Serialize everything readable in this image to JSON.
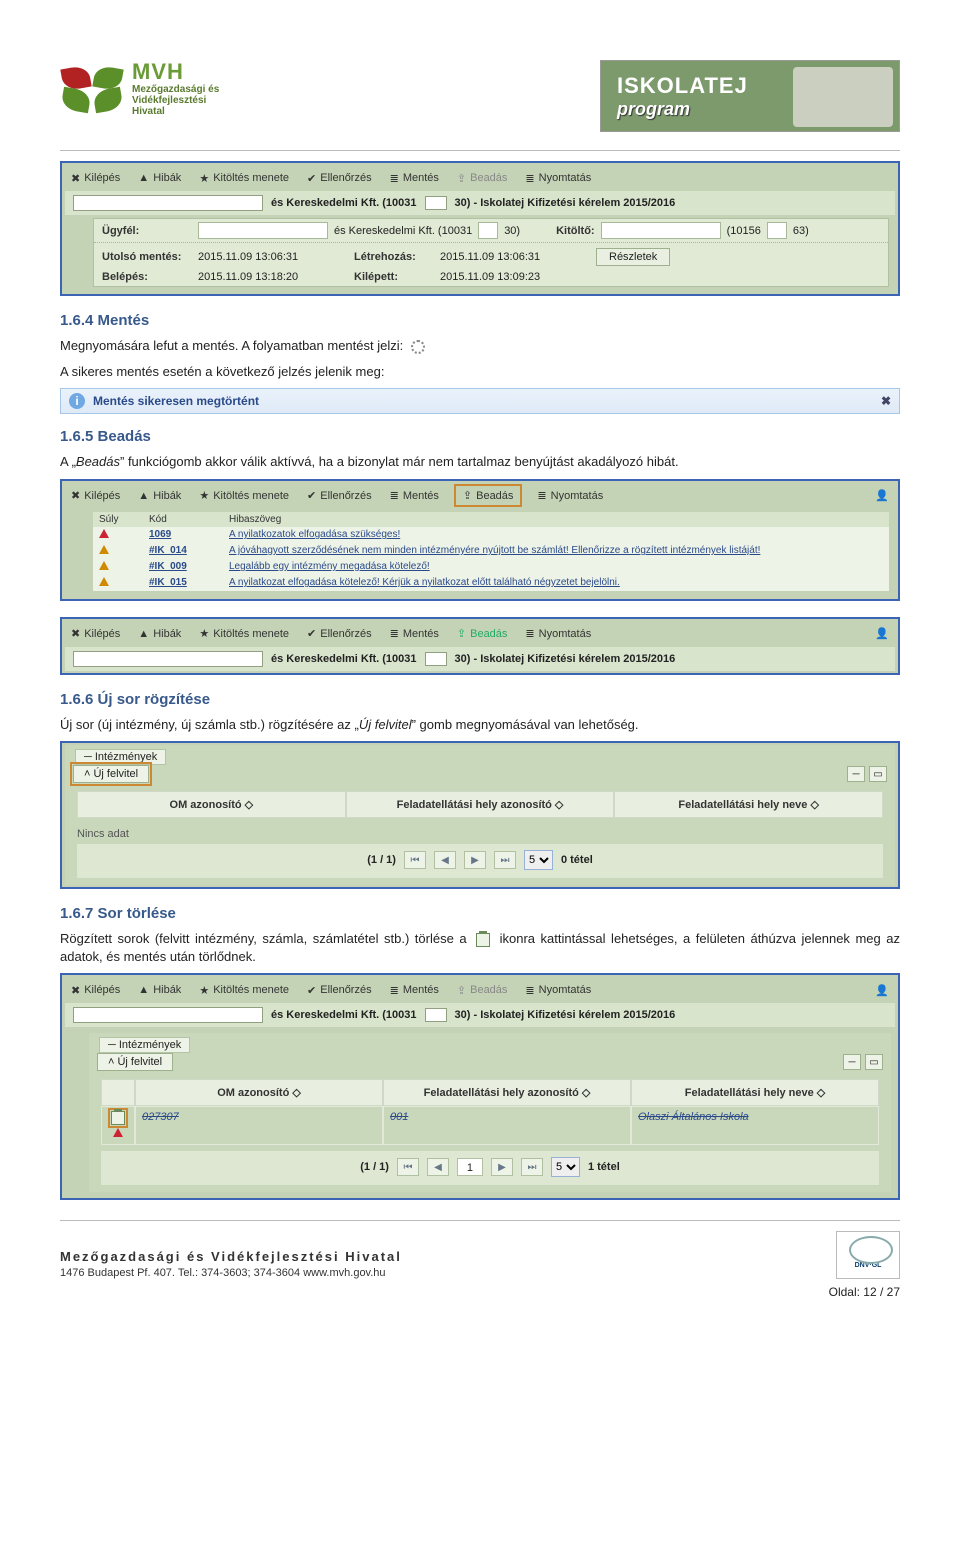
{
  "header": {
    "mvh_title": "MVH",
    "mvh_sub1": "Mezőgazdasági és",
    "mvh_sub2": "Vidékfejlesztési",
    "mvh_sub3": "Hivatal",
    "banner_line1": "ISKOLATEJ",
    "banner_line2": "program"
  },
  "menu": {
    "kilepes": "Kilépés",
    "hibak": "Hibák",
    "kitoltesmenete": "Kitöltés menete",
    "ellenorzes": "Ellenőrzés",
    "mentes": "Mentés",
    "beadas": "Beadás",
    "nyomtatas": "Nyomtatás"
  },
  "titleStrip": {
    "mid": "és Kereskedelmi Kft. (10031",
    "mid2": "30) - Iskolatej Kifizetési kérelem 2015/2016"
  },
  "info": {
    "ugyfel_label": "Ügyfél:",
    "ugyfel_mid": "és Kereskedelmi Kft. (10031",
    "ugyfel_mid2": "30)",
    "kitolto_label": "Kitöltő:",
    "kitolto_mid": "(10156",
    "kitolto_mid2": "63)",
    "utolso_label": "Utolsó mentés:",
    "utolso_val": "2015.11.09 13:06:31",
    "letre_label": "Létrehozás:",
    "letre_val": "2015.11.09 13:06:31",
    "belepes_label": "Belépés:",
    "belepes_val": "2015.11.09 13:18:20",
    "kilepett_label": "Kilépett:",
    "kilepett_val": "2015.11.09 13:09:23",
    "reszletek": "Részletek"
  },
  "sections": {
    "s164_title": "1.6.4  Mentés",
    "s164_p1": "Megnyomására lefut a mentés. A folyamatban mentést jelzi:",
    "s164_p2": "A sikeres mentés esetén a következő jelzés jelenik meg:",
    "save_msg": "Mentés sikeresen megtörtént",
    "s165_title": "1.6.5  Beadás",
    "s165_p_a": "A „",
    "s165_p_b": "Beadás",
    "s165_p_c": "” funkciógomb akkor válik aktívvá, ha a bizonylat már nem tartalmaz benyújtást akadályozó hibát.",
    "s166_title": "1.6.6  Új sor rögzítése",
    "s166_p_a": "Új sor (új intézmény, új számla stb.) rögzítésére az „",
    "s166_p_b": "Új felvitel",
    "s166_p_c": "” gomb megnyomásával van lehetőség.",
    "s167_title": "1.6.7  Sor törlése",
    "s167_p1": "Rögzített sorok (felvitt intézmény, számla, számlatétel stb.) törlése a",
    "s167_p2": "ikonra kattintással lehetséges, a felületen áthúzva jelennek meg az adatok, és mentés után törlődnek."
  },
  "errorTable": {
    "head_suly": "Súly",
    "head_kod": "Kód",
    "head_hiba": "Hibaszöveg",
    "rows": [
      {
        "sev": "red",
        "kod": "1069",
        "txt": "A nyilatkozatok elfogadása szükséges!"
      },
      {
        "sev": "y",
        "kod": "#IK_014",
        "txt": "A jóváhagyott szerződésének nem minden intézményére nyújtott be számlát! Ellenőrizze a rögzített intézmények listáját!"
      },
      {
        "sev": "y",
        "kod": "#IK_009",
        "txt": "Legalább egy intézmény megadása kötelező!"
      },
      {
        "sev": "y",
        "kod": "#IK_015",
        "txt": "A nyilatkozat elfogadása kötelező! Kérjük a nyilatkozat előtt található négyzetet bejelölni."
      }
    ]
  },
  "inst": {
    "panel_title": "Intézmények",
    "uj_felvitel": "Új felvitel",
    "col1": "OM azonosító ◇",
    "col2": "Feladatellátási hely azonosító ◇",
    "col3": "Feladatellátási hely neve ◇",
    "nincs": "Nincs adat",
    "pager_text_empty": "(1 / 1)",
    "pager_count0": "0 tétel",
    "pager_count1": "1 tétel",
    "pagesize": "5",
    "row_om": "027307",
    "row_fa": "001",
    "row_name": "Olaszi Általános Iskola",
    "pagebox1": "1"
  },
  "footer": {
    "line1": "Mezőgazdasági és Vidékfejlesztési Hivatal",
    "line2": "1476 Budapest Pf. 407.   Tel.: 374-3603; 374-3604   www.mvh.gov.hu",
    "dnv": "DNV·GL",
    "page": "Oldal: 12 / 27"
  }
}
